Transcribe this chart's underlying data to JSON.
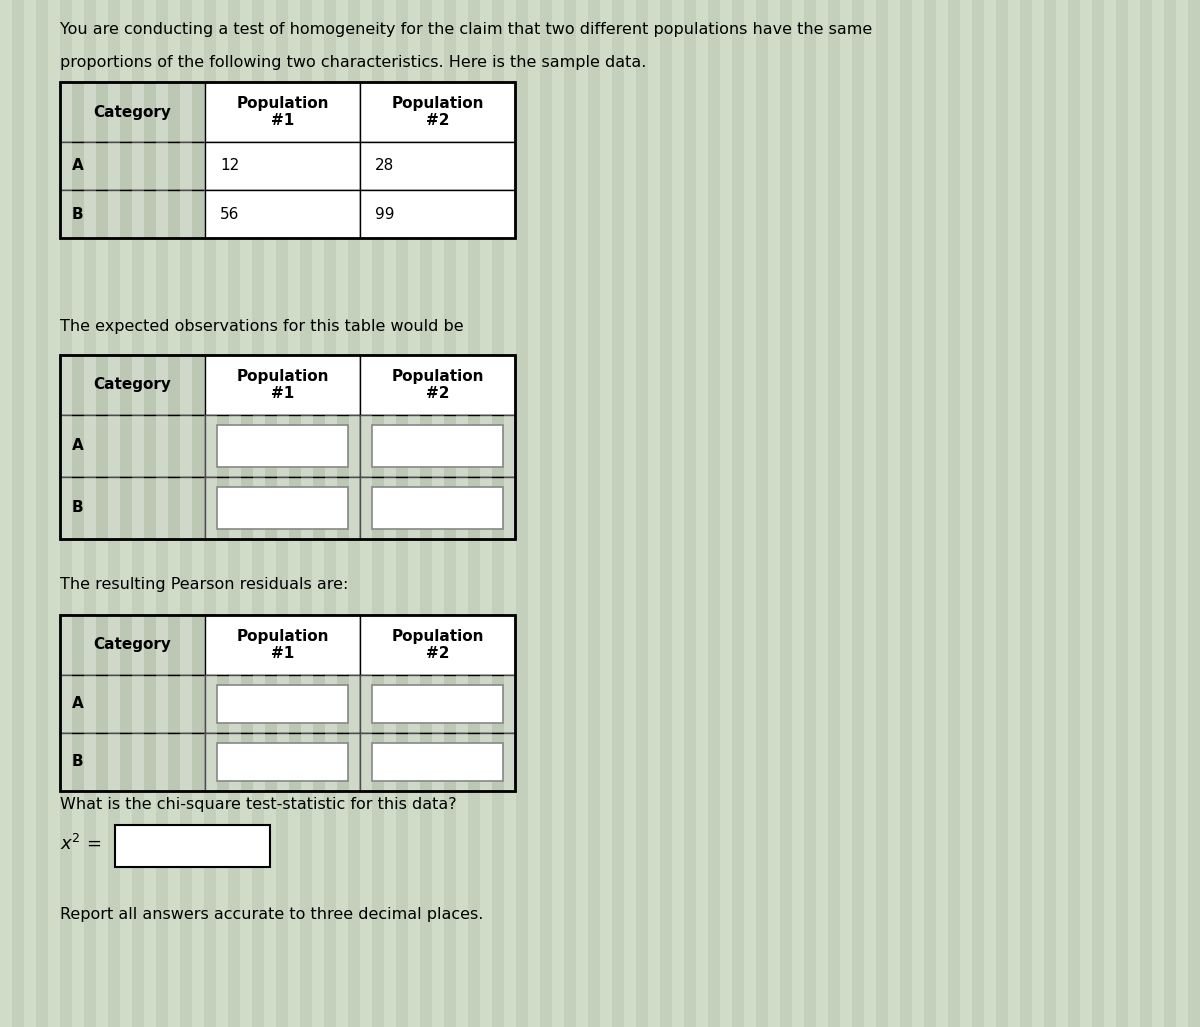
{
  "background_color": "#c8d4c0",
  "stripe_color1": "#c4d0bc",
  "stripe_color2": "#d0dcc8",
  "text_color": "#000000",
  "title_text1": "You are conducting a test of homogeneity for the claim that two different populations have the same",
  "title_text2": "proportions of the following two characteristics. Here is the sample data.",
  "table1_header": [
    "Category",
    "Population\n#1",
    "Population\n#2"
  ],
  "table1_rows": [
    [
      "A",
      "12",
      "28"
    ],
    [
      "B",
      "56",
      "99"
    ]
  ],
  "table2_label": "The expected observations for this table would be",
  "table2_header": [
    "Category",
    "Population\n#1",
    "Population\n#2"
  ],
  "table2_rows": [
    [
      "A",
      "",
      ""
    ],
    [
      "B",
      "",
      ""
    ]
  ],
  "table3_label": "The resulting Pearson residuals are:",
  "table3_header": [
    "Category",
    "Population\n#1",
    "Population\n#2"
  ],
  "table3_rows": [
    [
      "A",
      "",
      ""
    ],
    [
      "B",
      "",
      ""
    ]
  ],
  "chi_square_label": "What is the chi-square test-statistic for this data?",
  "report_text": "Report all answers accurate to three decimal places.",
  "cell_bg": "#bcc8b4",
  "input_box_bg": "#c8d4c0",
  "input_box_border": "#8a9a82",
  "table_border": "#000000",
  "header_bg": "#ffffff"
}
